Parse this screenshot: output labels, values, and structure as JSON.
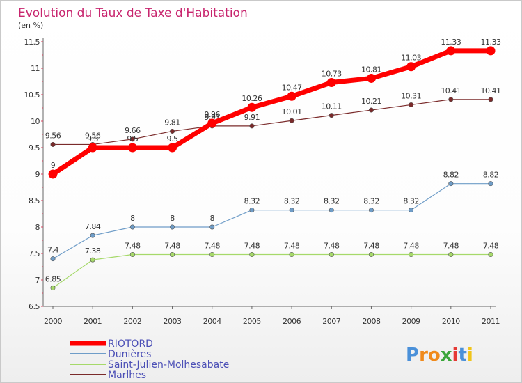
{
  "chart_data": {
    "type": "line",
    "title": "Evolution du Taux de Taxe d'Habitation",
    "subtitle": "(en %)",
    "xlabel": "",
    "ylabel": "",
    "categories": [
      "2000",
      "2001",
      "2002",
      "2003",
      "2004",
      "2005",
      "2006",
      "2007",
      "2008",
      "2009",
      "2010",
      "2011"
    ],
    "ylim": [
      6.5,
      11.5
    ],
    "yticks": [
      "6.5",
      "7",
      "7.5",
      "8",
      "8.5",
      "9",
      "9.5",
      "10",
      "10.5",
      "11",
      "11.5"
    ],
    "grid": false,
    "legend_position": "bottom-left",
    "series": [
      {
        "name": "RIOTORD",
        "color": "#ff0000",
        "values": [
          9,
          9.5,
          9.5,
          9.5,
          9.96,
          10.26,
          10.47,
          10.73,
          10.81,
          11.03,
          11.33,
          11.33
        ],
        "labels": [
          "9",
          "9.5",
          "9.5",
          "9.5",
          "9.96",
          "10.26",
          "10.47",
          "10.73",
          "10.81",
          "11.03",
          "11.33",
          "11.33"
        ]
      },
      {
        "name": "Dunières",
        "color": "#6f9dc8",
        "values": [
          7.4,
          7.84,
          8,
          8,
          8,
          8.32,
          8.32,
          8.32,
          8.32,
          8.32,
          8.82,
          8.82
        ],
        "labels": [
          "7.4",
          "7.84",
          "8",
          "8",
          "8",
          "8.32",
          "8.32",
          "8.32",
          "8.32",
          "8.32",
          "8.82",
          "8.82"
        ]
      },
      {
        "name": "Saint-Julien-Molhesabate",
        "color": "#a6d96a",
        "values": [
          6.85,
          7.38,
          7.48,
          7.48,
          7.48,
          7.48,
          7.48,
          7.48,
          7.48,
          7.48,
          7.48,
          7.48
        ],
        "labels": [
          "6.85",
          "7.38",
          "7.48",
          "7.48",
          "7.48",
          "7.48",
          "7.48",
          "7.48",
          "7.48",
          "7.48",
          "7.48",
          "7.48"
        ]
      },
      {
        "name": "Marlhes",
        "color": "#7a2a2a",
        "values": [
          9.56,
          9.56,
          9.66,
          9.81,
          9.91,
          9.91,
          10.01,
          10.11,
          10.21,
          10.31,
          10.41,
          10.41
        ],
        "labels": [
          "9.56",
          "9.56",
          "9.66",
          "9.81",
          "9.91",
          "9.91",
          "10.01",
          "10.11",
          "10.21",
          "10.31",
          "10.41",
          "10.41"
        ]
      }
    ]
  },
  "logo": {
    "text": "Proxiti"
  }
}
